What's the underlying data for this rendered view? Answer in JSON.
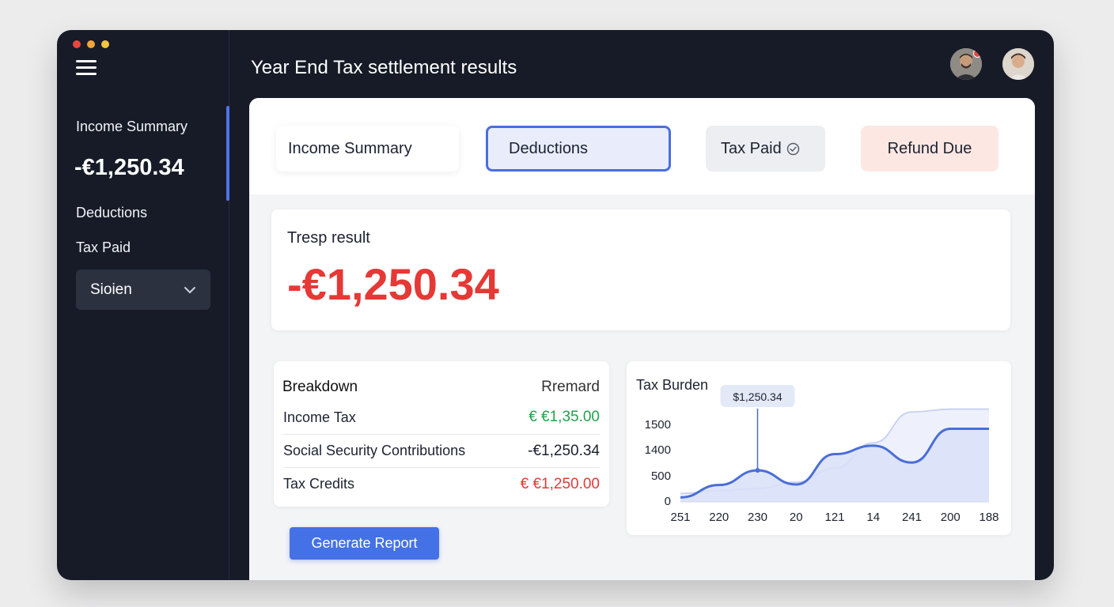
{
  "header": {
    "title": "Year End Tax settlement results"
  },
  "sidebar": {
    "income_label": "Income Summary",
    "amount": "-€1,250.34",
    "deductions_label": "Deductions",
    "tax_paid_label": "Tax Paid",
    "select_value": "Sioien"
  },
  "tabs": [
    {
      "label": "Income Summary"
    },
    {
      "label": "Deductions"
    },
    {
      "label": "Tax Paid"
    },
    {
      "label": "Refund Due"
    }
  ],
  "result": {
    "label": "Tresp result",
    "value": "-€1,250.34"
  },
  "breakdown": {
    "title": "Breakdown",
    "remark_header": "Rremard",
    "rows": [
      {
        "label": "Income Tax",
        "value": "€ €1,35.00",
        "color": "#23a14a"
      },
      {
        "label": "Social Security Contributions",
        "value": "-€1,250.34",
        "color": "#1a1f2c"
      },
      {
        "label": "Tax Credits",
        "value": "€ €1,250.00",
        "color": "#e53935"
      }
    ]
  },
  "actions": {
    "generate_label": "Generate Report"
  },
  "chart_data": {
    "type": "area",
    "title": "Tax Burden",
    "x": [
      "251",
      "220",
      "230",
      "20",
      "121",
      "14",
      "241",
      "200",
      "188"
    ],
    "y_ticks": [
      "1500",
      "1400",
      "500",
      "0"
    ],
    "series": [
      {
        "values": [
          80,
          300,
          560,
          310,
          850,
          1000,
          700,
          1300,
          1300
        ]
      },
      {
        "values": [
          150,
          200,
          240,
          350,
          600,
          1050,
          1600,
          1650,
          1650
        ]
      }
    ],
    "tooltip": {
      "text": "$1,250.34",
      "index": 2
    },
    "colors": {
      "line": "#4a6ed8",
      "fill": "#d9e0f8",
      "back_line": "#c9d2f3"
    }
  },
  "colors": {
    "accent": "#4571e6",
    "negative": "#e53935",
    "positive": "#23a14a",
    "dark_bg": "#161b27"
  }
}
